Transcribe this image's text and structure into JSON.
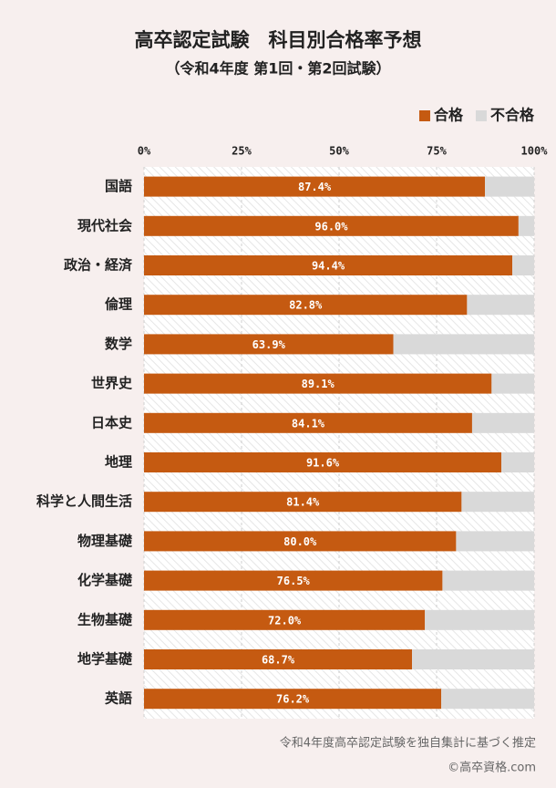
{
  "chart_data": {
    "type": "stacked_bar_horizontal",
    "title": "高卒認定試験　科目別合格率予想",
    "subtitle": "（令和4年度 第1回・第2回試験）",
    "categories": [
      "国語",
      "現代社会",
      "政治・経済",
      "倫理",
      "数学",
      "世界史",
      "日本史",
      "地理",
      "科学と人間生活",
      "物理基礎",
      "化学基礎",
      "生物基礎",
      "地学基礎",
      "英語"
    ],
    "series": [
      {
        "name": "合格",
        "color": "#c55a11",
        "values": [
          87.4,
          96.0,
          94.4,
          82.8,
          63.9,
          89.1,
          84.1,
          91.6,
          81.4,
          80.0,
          76.5,
          72.0,
          68.7,
          76.2
        ],
        "value_labels": [
          "87.4%",
          "96.0%",
          "94.4%",
          "82.8%",
          "63.9%",
          "89.1%",
          "84.1%",
          "91.6%",
          "81.4%",
          "80.0%",
          "76.5%",
          "72.0%",
          "68.7%",
          "76.2%"
        ]
      },
      {
        "name": "不合格",
        "color": "#d9d9d9",
        "values": [
          12.6,
          4.0,
          5.6,
          17.2,
          36.1,
          10.9,
          15.9,
          8.4,
          18.6,
          20.0,
          23.5,
          28.0,
          31.3,
          23.8
        ]
      }
    ],
    "xlim": [
      0,
      100
    ],
    "xticks": [
      {
        "value": 0,
        "label": "0%"
      },
      {
        "value": 25,
        "label": "25%"
      },
      {
        "value": 50,
        "label": "50%"
      },
      {
        "value": 75,
        "label": "75%"
      },
      {
        "value": 100,
        "label": "100%"
      }
    ],
    "grid": true,
    "legend": "top-right",
    "footnotes": [
      "令和4年度高卒認定試験を独自集計に基づく推定",
      "©高卒資格.com"
    ]
  }
}
